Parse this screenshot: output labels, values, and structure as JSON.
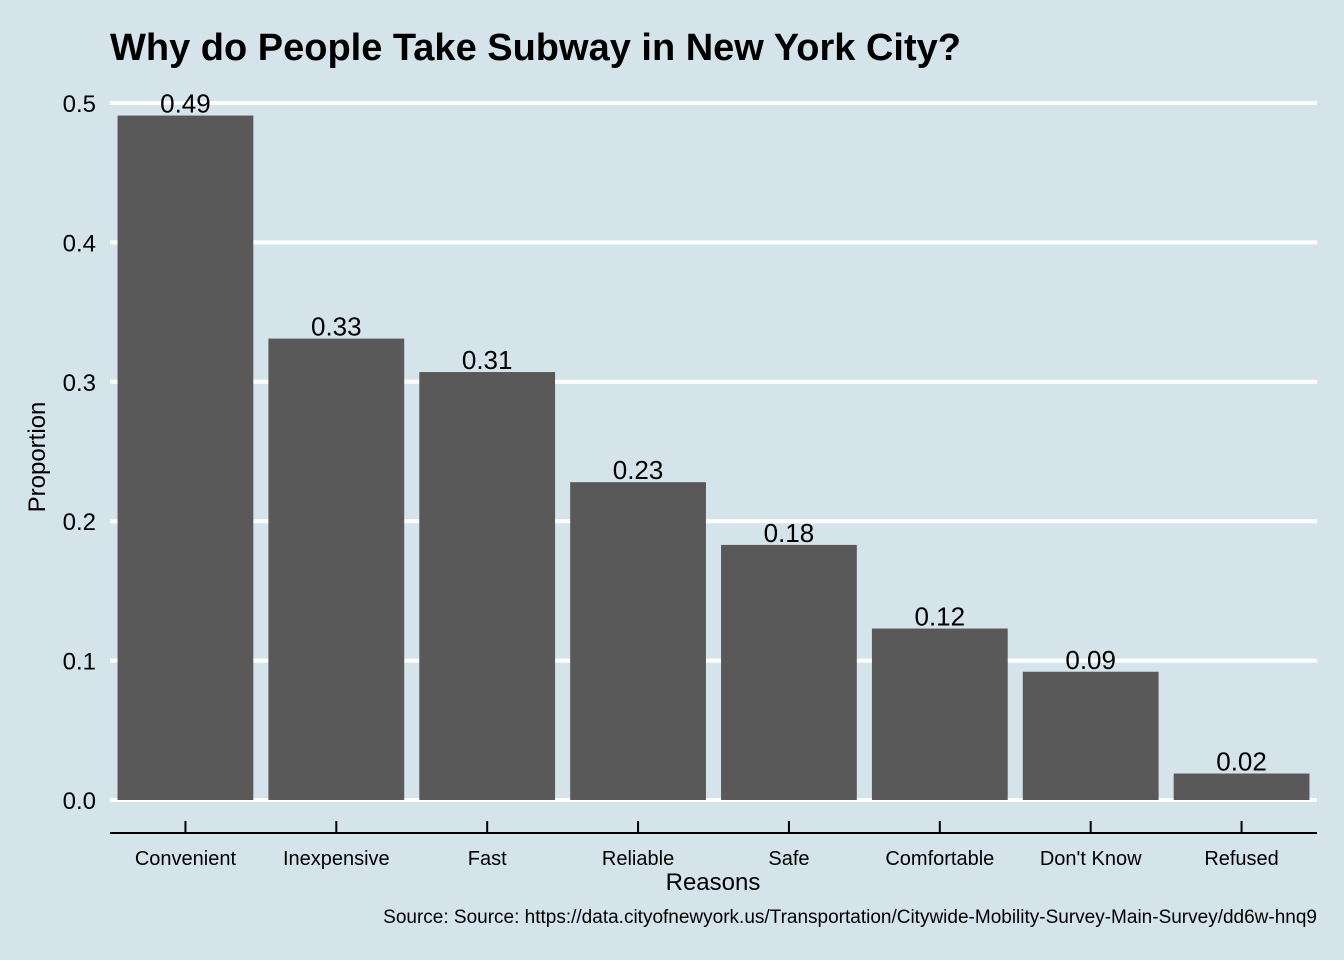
{
  "chart_data": {
    "type": "bar",
    "title": "Why do People Take Subway in New York City?",
    "xlabel": "Reasons",
    "ylabel": "Proportion",
    "caption": "Source: Source: https://data.cityofnewyork.us/Transportation/Citywide-Mobility-Survey-Main-Survey/dd6w-hnq9",
    "categories": [
      "Convenient",
      "Inexpensive",
      "Fast",
      "Reliable",
      "Safe",
      "Comfortable",
      "Don't Know",
      "Refused"
    ],
    "values": [
      0.491,
      0.331,
      0.307,
      0.228,
      0.183,
      0.123,
      0.092,
      0.019
    ],
    "data_labels": [
      "0.49",
      "0.33",
      "0.31",
      "0.23",
      "0.18",
      "0.12",
      "0.09",
      "0.02"
    ],
    "yticks": [
      0.0,
      0.1,
      0.2,
      0.3,
      0.4,
      0.5
    ],
    "ytick_labels": [
      "0.0",
      "0.1",
      "0.2",
      "0.3",
      "0.4",
      "0.5"
    ],
    "ylim": [
      0,
      0.5
    ],
    "grid": true,
    "legend": "none",
    "colors": {
      "background": "#d5e4eb",
      "bar": "#595959",
      "grid": "#ffffff"
    }
  }
}
